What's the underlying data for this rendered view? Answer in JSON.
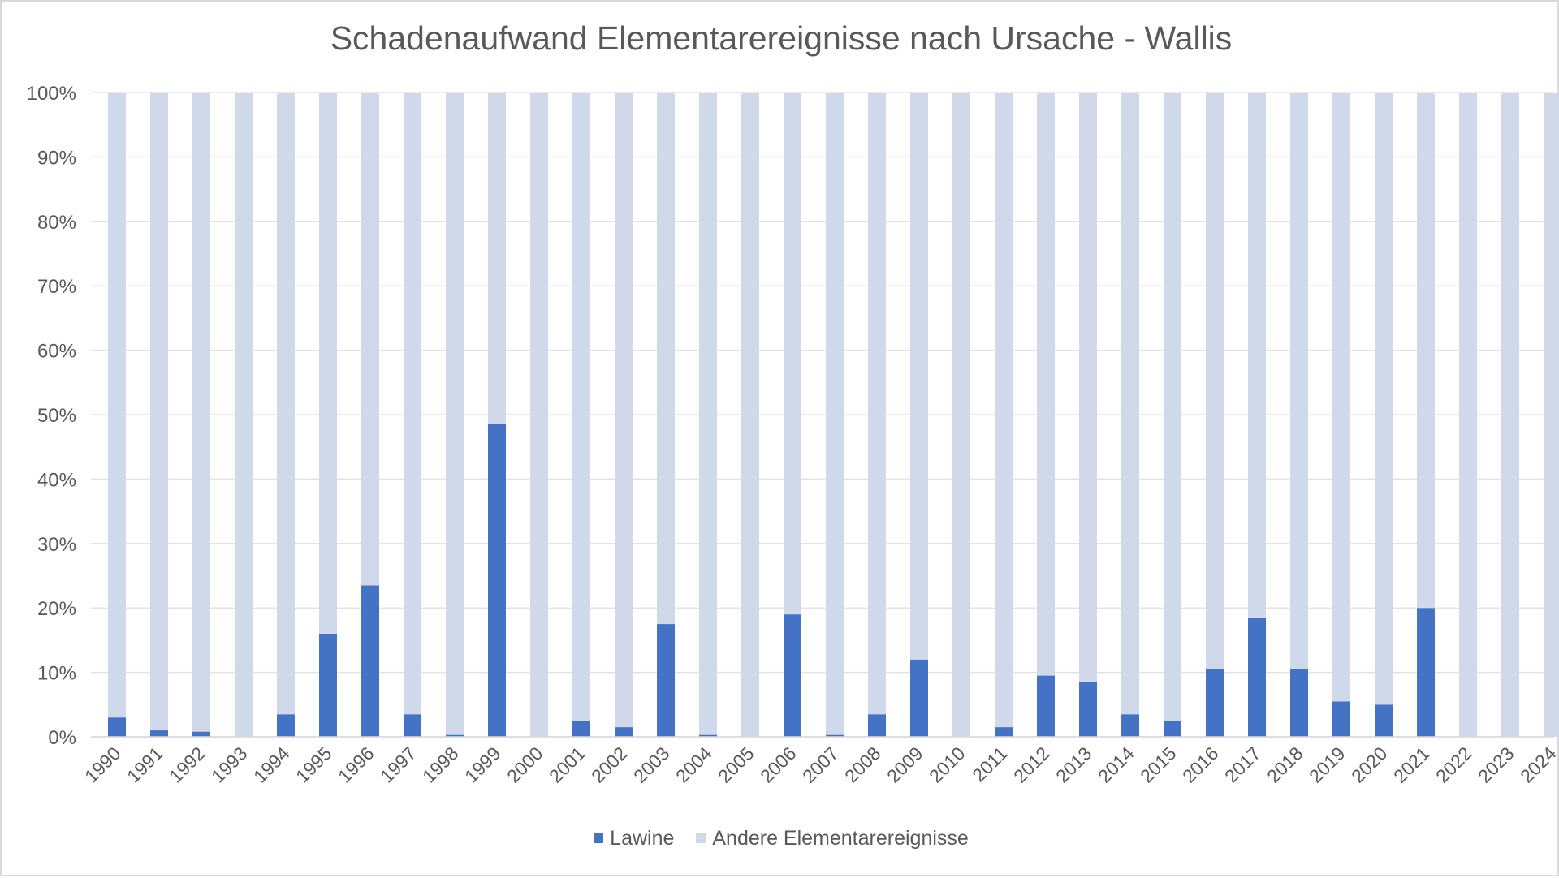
{
  "chart_data": {
    "type": "bar",
    "stacked": true,
    "title": "Schadenaufwand Elementarereignisse nach Ursache - Wallis",
    "xlabel": "",
    "ylabel": "",
    "ylim": [
      0,
      100
    ],
    "yticks": [
      "0%",
      "10%",
      "20%",
      "30%",
      "40%",
      "50%",
      "60%",
      "70%",
      "80%",
      "90%",
      "100%"
    ],
    "grid": true,
    "legend_position": "bottom",
    "categories": [
      "1990",
      "1991",
      "1992",
      "1993",
      "1994",
      "1995",
      "1996",
      "1997",
      "1998",
      "1999",
      "2000",
      "2001",
      "2002",
      "2003",
      "2004",
      "2005",
      "2006",
      "2007",
      "2008",
      "2009",
      "2010",
      "2011",
      "2012",
      "2013",
      "2014",
      "2015",
      "2016",
      "2017",
      "2018",
      "2019",
      "2020",
      "2021",
      "2022",
      "2023",
      "2024"
    ],
    "series": [
      {
        "name": "Lawine",
        "color": "#4472c4",
        "values": [
          3,
          1,
          0.8,
          0,
          3.5,
          16,
          23.5,
          3.5,
          0.3,
          48.5,
          0,
          2.5,
          1.5,
          17.5,
          0.3,
          0,
          19,
          0.3,
          3.5,
          12,
          0,
          1.5,
          9.5,
          8.5,
          3.5,
          2.5,
          10.5,
          18.5,
          10.5,
          5.5,
          5,
          20,
          0,
          0,
          0
        ]
      },
      {
        "name": "Andere Elementarereignisse",
        "color": "#cfd9ea",
        "values": [
          97,
          99,
          99.2,
          100,
          96.5,
          84,
          76.5,
          96.5,
          99.7,
          51.5,
          100,
          97.5,
          98.5,
          82.5,
          99.7,
          100,
          81,
          99.7,
          96.5,
          88,
          100,
          98.5,
          90.5,
          91.5,
          96.5,
          97.5,
          89.5,
          81.5,
          89.5,
          94.5,
          95,
          80,
          100,
          100,
          100
        ]
      }
    ]
  }
}
